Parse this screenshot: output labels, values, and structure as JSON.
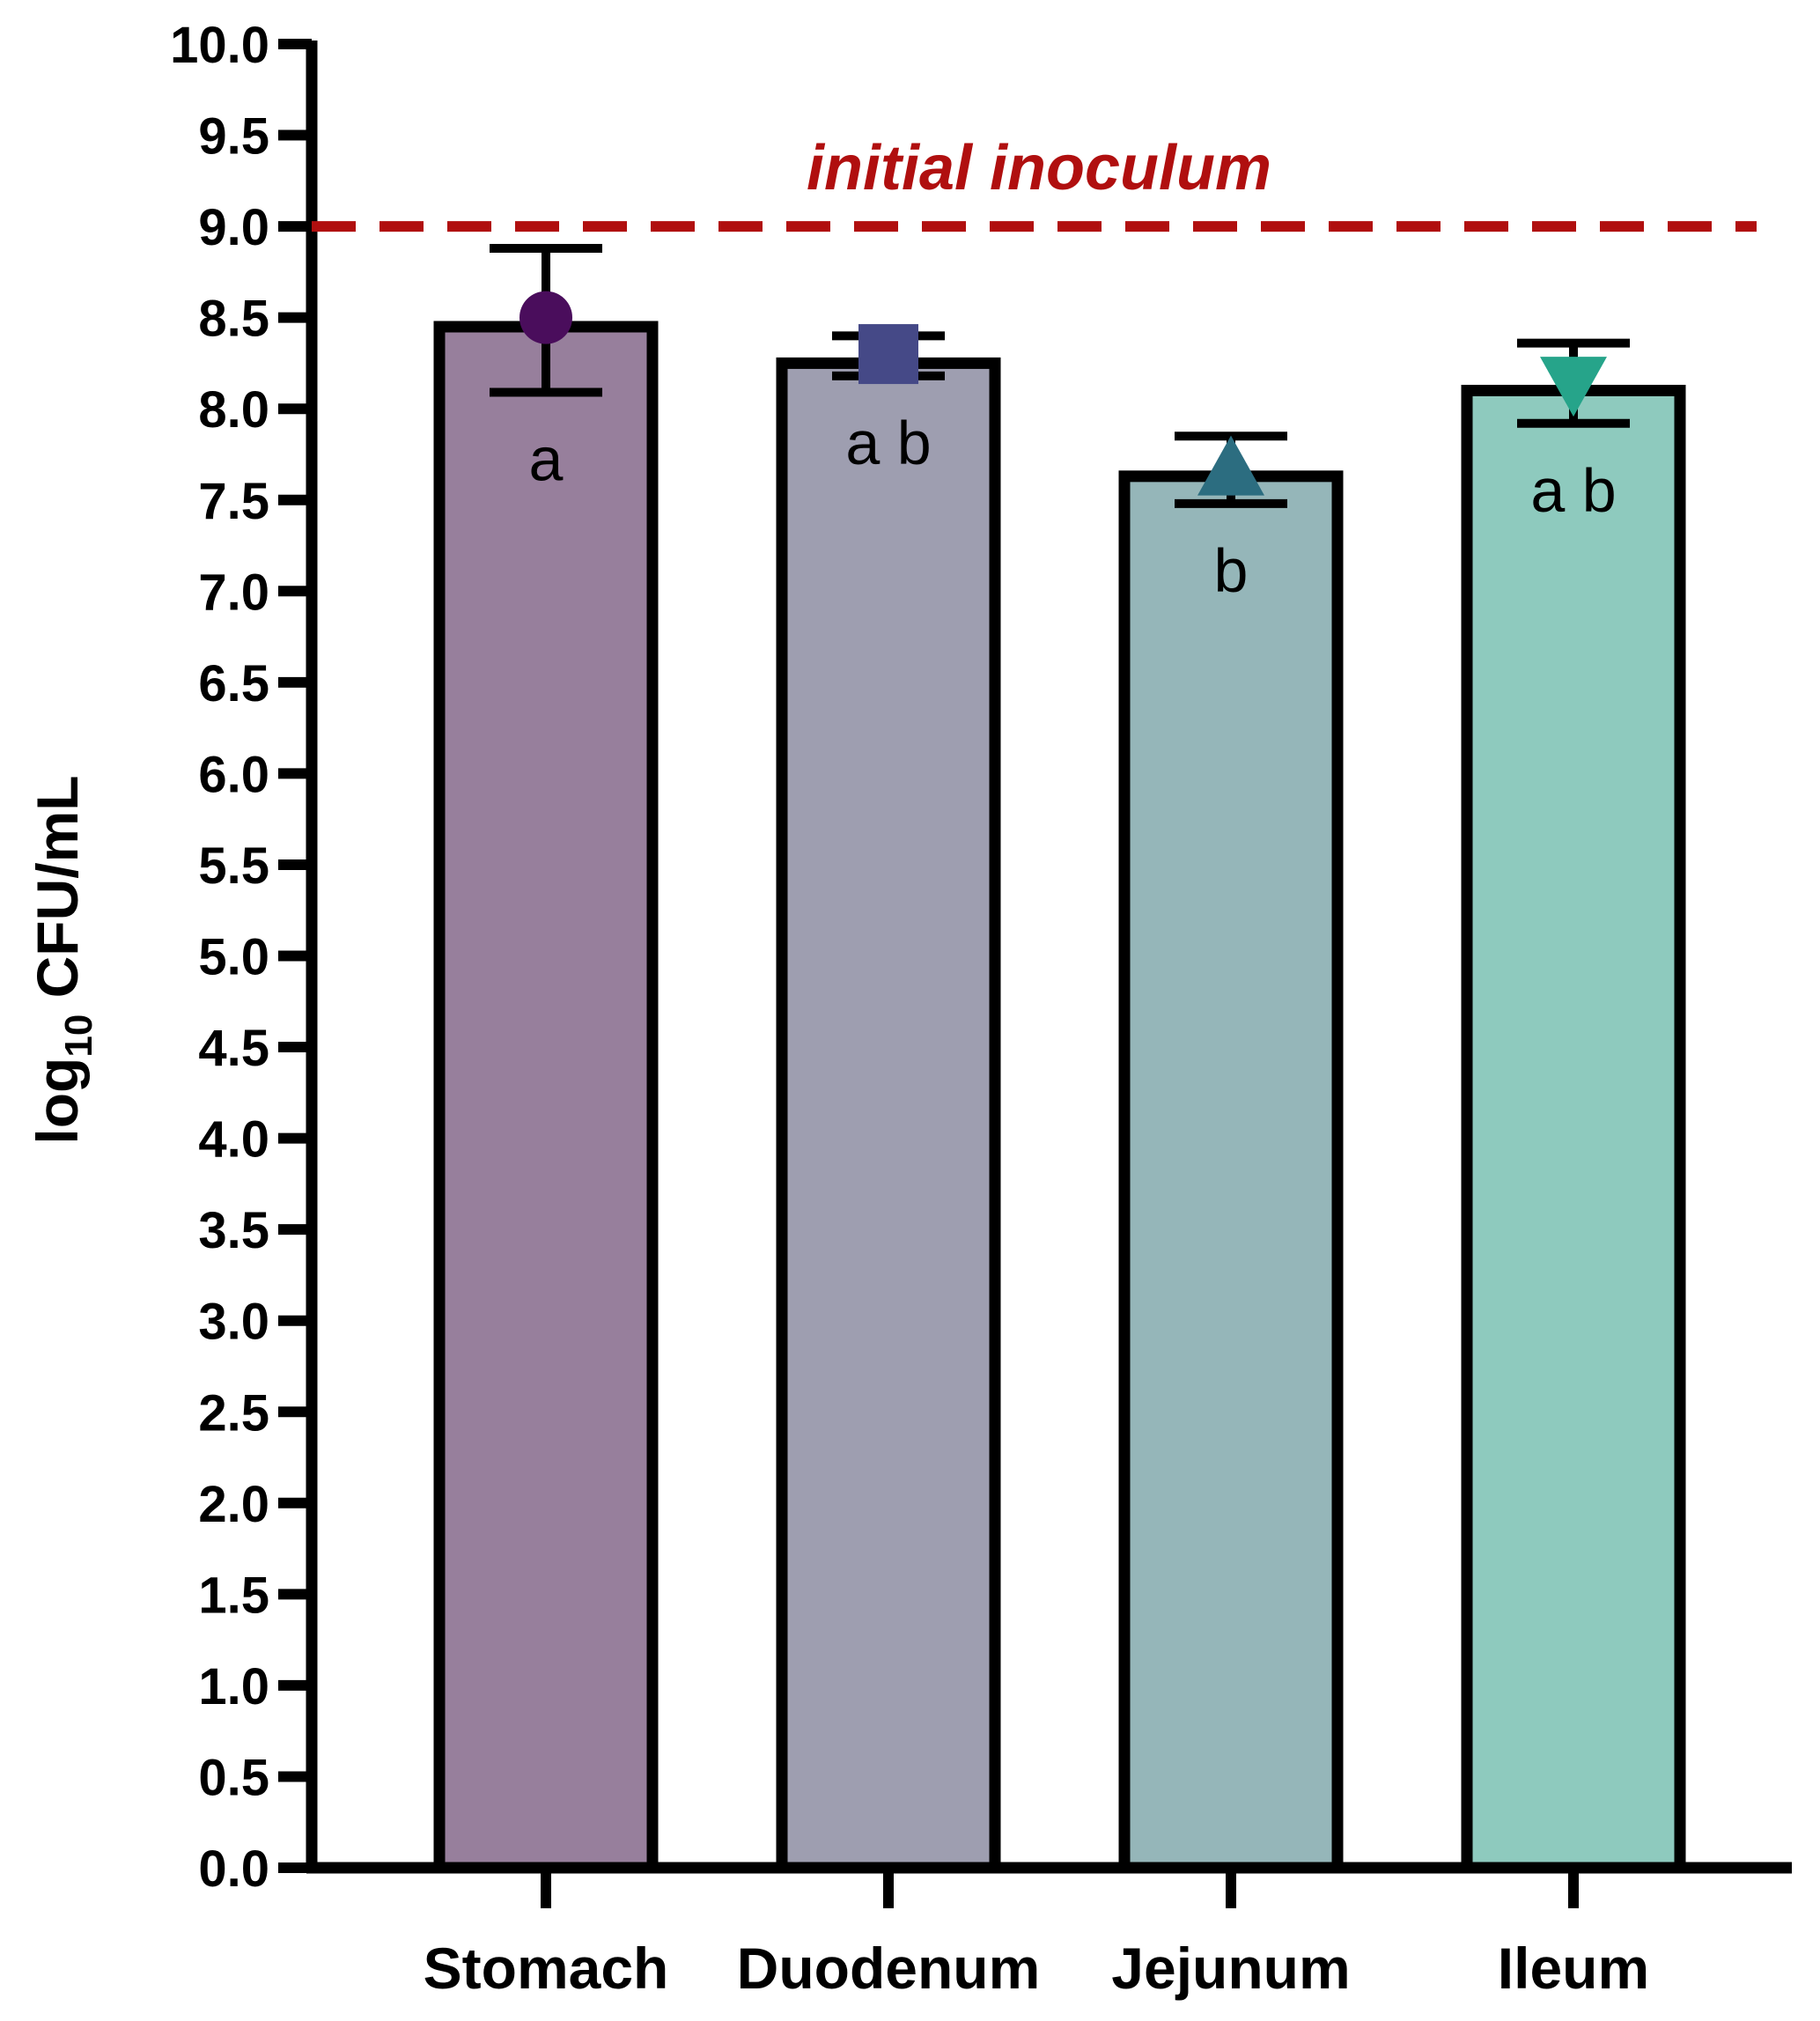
{
  "chart_data": {
    "type": "bar",
    "title": "",
    "xlabel": "",
    "ylabel": {
      "main": "log",
      "subscript": "10",
      "rest": " CFU/mL"
    },
    "ylim": [
      0,
      10
    ],
    "yticks": [
      "0.0",
      "0.5",
      "1.0",
      "1.5",
      "2.0",
      "2.5",
      "3.0",
      "3.5",
      "4.0",
      "4.5",
      "5.0",
      "5.5",
      "6.0",
      "6.5",
      "7.0",
      "7.5",
      "8.0",
      "8.5",
      "9.0",
      "9.5",
      "10.0"
    ],
    "grid": false,
    "legend": "none",
    "categories": [
      "Stomach",
      "Duodenum",
      "Jejunum",
      "Ileum"
    ],
    "values": [
      8.45,
      8.25,
      7.63,
      8.1
    ],
    "error_upper": [
      8.88,
      8.4,
      7.85,
      8.36
    ],
    "error_lower": [
      8.09,
      8.18,
      7.48,
      7.92
    ],
    "point_values": [
      8.5,
      8.3,
      7.66,
      8.15
    ],
    "markers": [
      "circle",
      "square",
      "triangle-up",
      "triangle-down"
    ],
    "significance": [
      "a",
      "a b",
      "b",
      "a b"
    ],
    "bar_colors": [
      "#977f9c",
      "#9e9eb0",
      "#95b6b9",
      "#8ecabe"
    ],
    "marker_colors": [
      "#4a0d5c",
      "#454987",
      "#2c6d80",
      "#26a48a"
    ],
    "reference_line": {
      "label": "initial inoculum",
      "value": 9.0,
      "color": "#b00f0f"
    }
  }
}
